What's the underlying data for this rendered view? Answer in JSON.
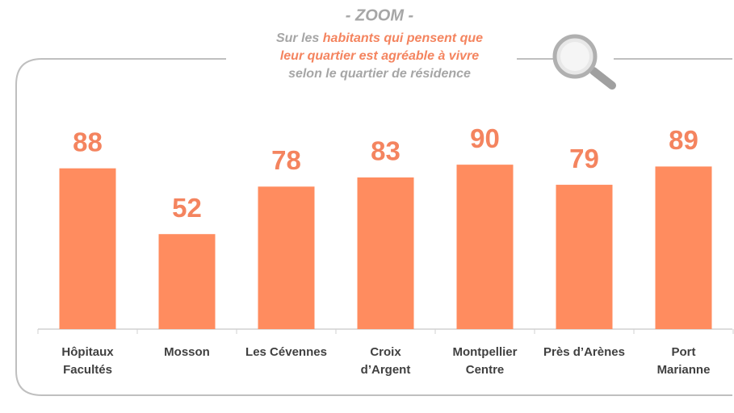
{
  "chart_data": {
    "type": "bar",
    "title": "- ZOOM -",
    "subtitle": [
      [
        {
          "text": "Sur les ",
          "color": "#a6a6a6"
        },
        {
          "text": "habitants qui pensent que",
          "color": "#f4845f"
        }
      ],
      [
        {
          "text": "leur quartier est agréable à vivre",
          "color": "#f4845f"
        }
      ],
      [
        {
          "text": "selon le quartier de résidence",
          "color": "#a6a6a6"
        }
      ]
    ],
    "categories": [
      [
        "Hôpitaux",
        "Facultés"
      ],
      [
        "Mosson"
      ],
      [
        "Les Cévennes"
      ],
      [
        "Croix",
        "d’Argent"
      ],
      [
        "Montpellier",
        "Centre"
      ],
      [
        "Près d’Arènes"
      ],
      [
        "Port",
        "Marianne"
      ]
    ],
    "values": [
      88,
      52,
      78,
      83,
      90,
      79,
      89
    ],
    "color": "#ff8c5f"
  }
}
